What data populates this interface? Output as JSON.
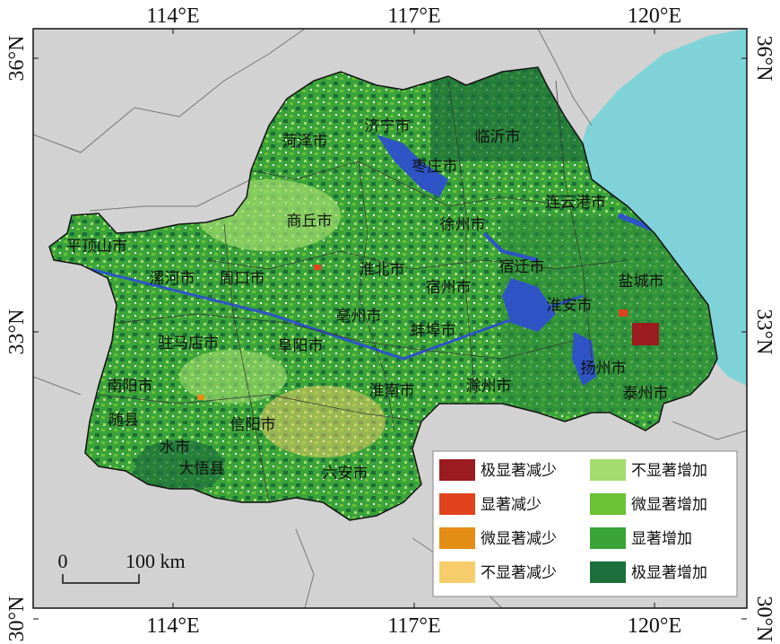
{
  "map": {
    "top_ticks": [
      "114°E",
      "117°E",
      "120°E"
    ],
    "bottom_ticks": [
      "114°E",
      "117°E",
      "120°E"
    ],
    "left_ticks": [
      "36°N",
      "33°N",
      "30°N"
    ],
    "right_ticks": [
      "36°N",
      "33°N",
      "30°N"
    ],
    "cities": [
      "菏泽市",
      "济宁市",
      "临沂市",
      "枣庄市",
      "连云港市",
      "商丘市",
      "徐州市",
      "平顶山市",
      "漯河市",
      "周口市",
      "淮北市",
      "宿迁市",
      "盐城市",
      "宿州市",
      "淮安市",
      "亳州市",
      "蚌埠市",
      "驻马店市",
      "阜阳市",
      "扬州市",
      "南阳市",
      "淮南市",
      "滁州市",
      "泰州市",
      "随县",
      "信阳市",
      "水市",
      "大悟县",
      "六安市"
    ],
    "legend": [
      {
        "label": "极显著减少",
        "color": "#9b1c20"
      },
      {
        "label": "显著减少",
        "color": "#e0421d"
      },
      {
        "label": "微显著减少",
        "color": "#e38d14"
      },
      {
        "label": "不显著减少",
        "color": "#f6cd6a"
      },
      {
        "label": "不显著增加",
        "color": "#a4dc6f"
      },
      {
        "label": "微显著增加",
        "color": "#6bc233"
      },
      {
        "label": "显著增加",
        "color": "#3aa33a"
      },
      {
        "label": "极显著增加",
        "color": "#1c6e3a"
      }
    ],
    "scale_bar": {
      "start": "0",
      "end": "100 km"
    }
  }
}
